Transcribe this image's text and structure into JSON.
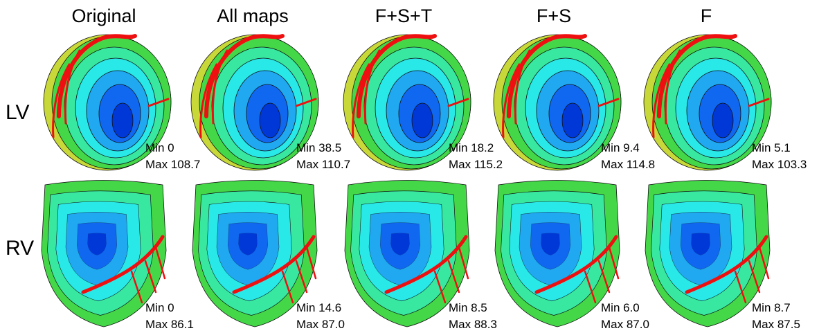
{
  "columns": [
    "Original",
    "All maps",
    "F+S+T",
    "F+S",
    "F"
  ],
  "rows": [
    {
      "label": "LV",
      "stats": [
        {
          "min": "Min 0",
          "max": "Max 108.7"
        },
        {
          "min": "Min 38.5",
          "max": "Max 110.7"
        },
        {
          "min": "Min 18.2",
          "max": "Max 115.2"
        },
        {
          "min": "Min 9.4",
          "max": "Max 114.8"
        },
        {
          "min": "Min 5.1",
          "max": "Max 103.3"
        }
      ]
    },
    {
      "label": "RV",
      "stats": [
        {
          "min": "Min 0",
          "max": "Max 86.1"
        },
        {
          "min": "Min 14.6",
          "max": "Max 87.0"
        },
        {
          "min": "Min 8.5",
          "max": "Max 88.3"
        },
        {
          "min": "Min 6.0",
          "max": "Max 87.0"
        },
        {
          "min": "Min 8.7",
          "max": "Max 87.5"
        }
      ]
    }
  ]
}
